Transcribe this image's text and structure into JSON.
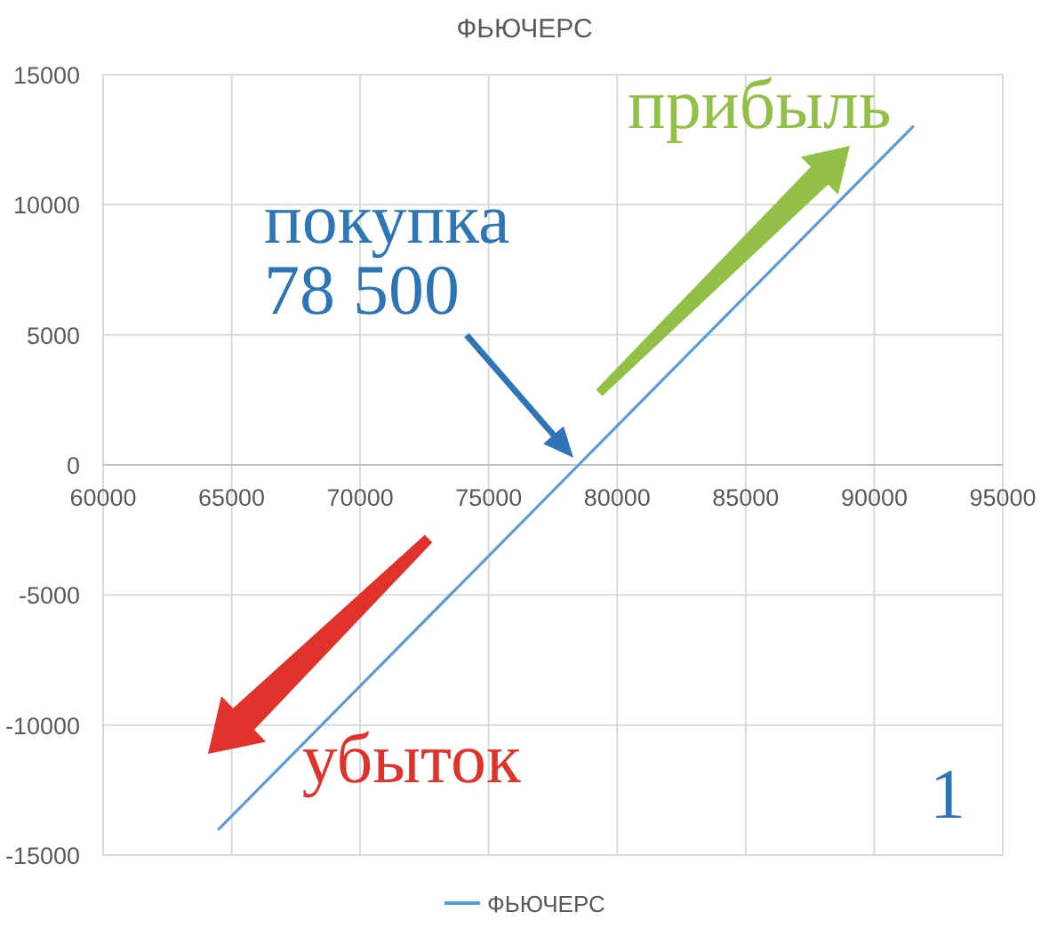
{
  "chart_data": {
    "type": "line",
    "title": "ФЬЮЧЕРС",
    "x": [
      64500,
      78500,
      91500
    ],
    "series": [
      {
        "name": "ФЬЮЧЕРС",
        "color": "#5b9bd5",
        "values": [
          -14000,
          0,
          13000
        ]
      }
    ],
    "xlim": [
      60000,
      95000
    ],
    "xticks": [
      60000,
      65000,
      70000,
      75000,
      80000,
      85000,
      90000,
      95000
    ],
    "ylim": [
      -15000,
      15000
    ],
    "yticks": [
      -15000,
      -10000,
      -5000,
      0,
      5000,
      10000,
      15000
    ],
    "grid": true,
    "legend": "bottom",
    "annotations": [
      {
        "text": "покупка\n78 500",
        "x": 78500,
        "y": 0
      },
      "прибыль",
      "убыток",
      "1"
    ]
  }
}
